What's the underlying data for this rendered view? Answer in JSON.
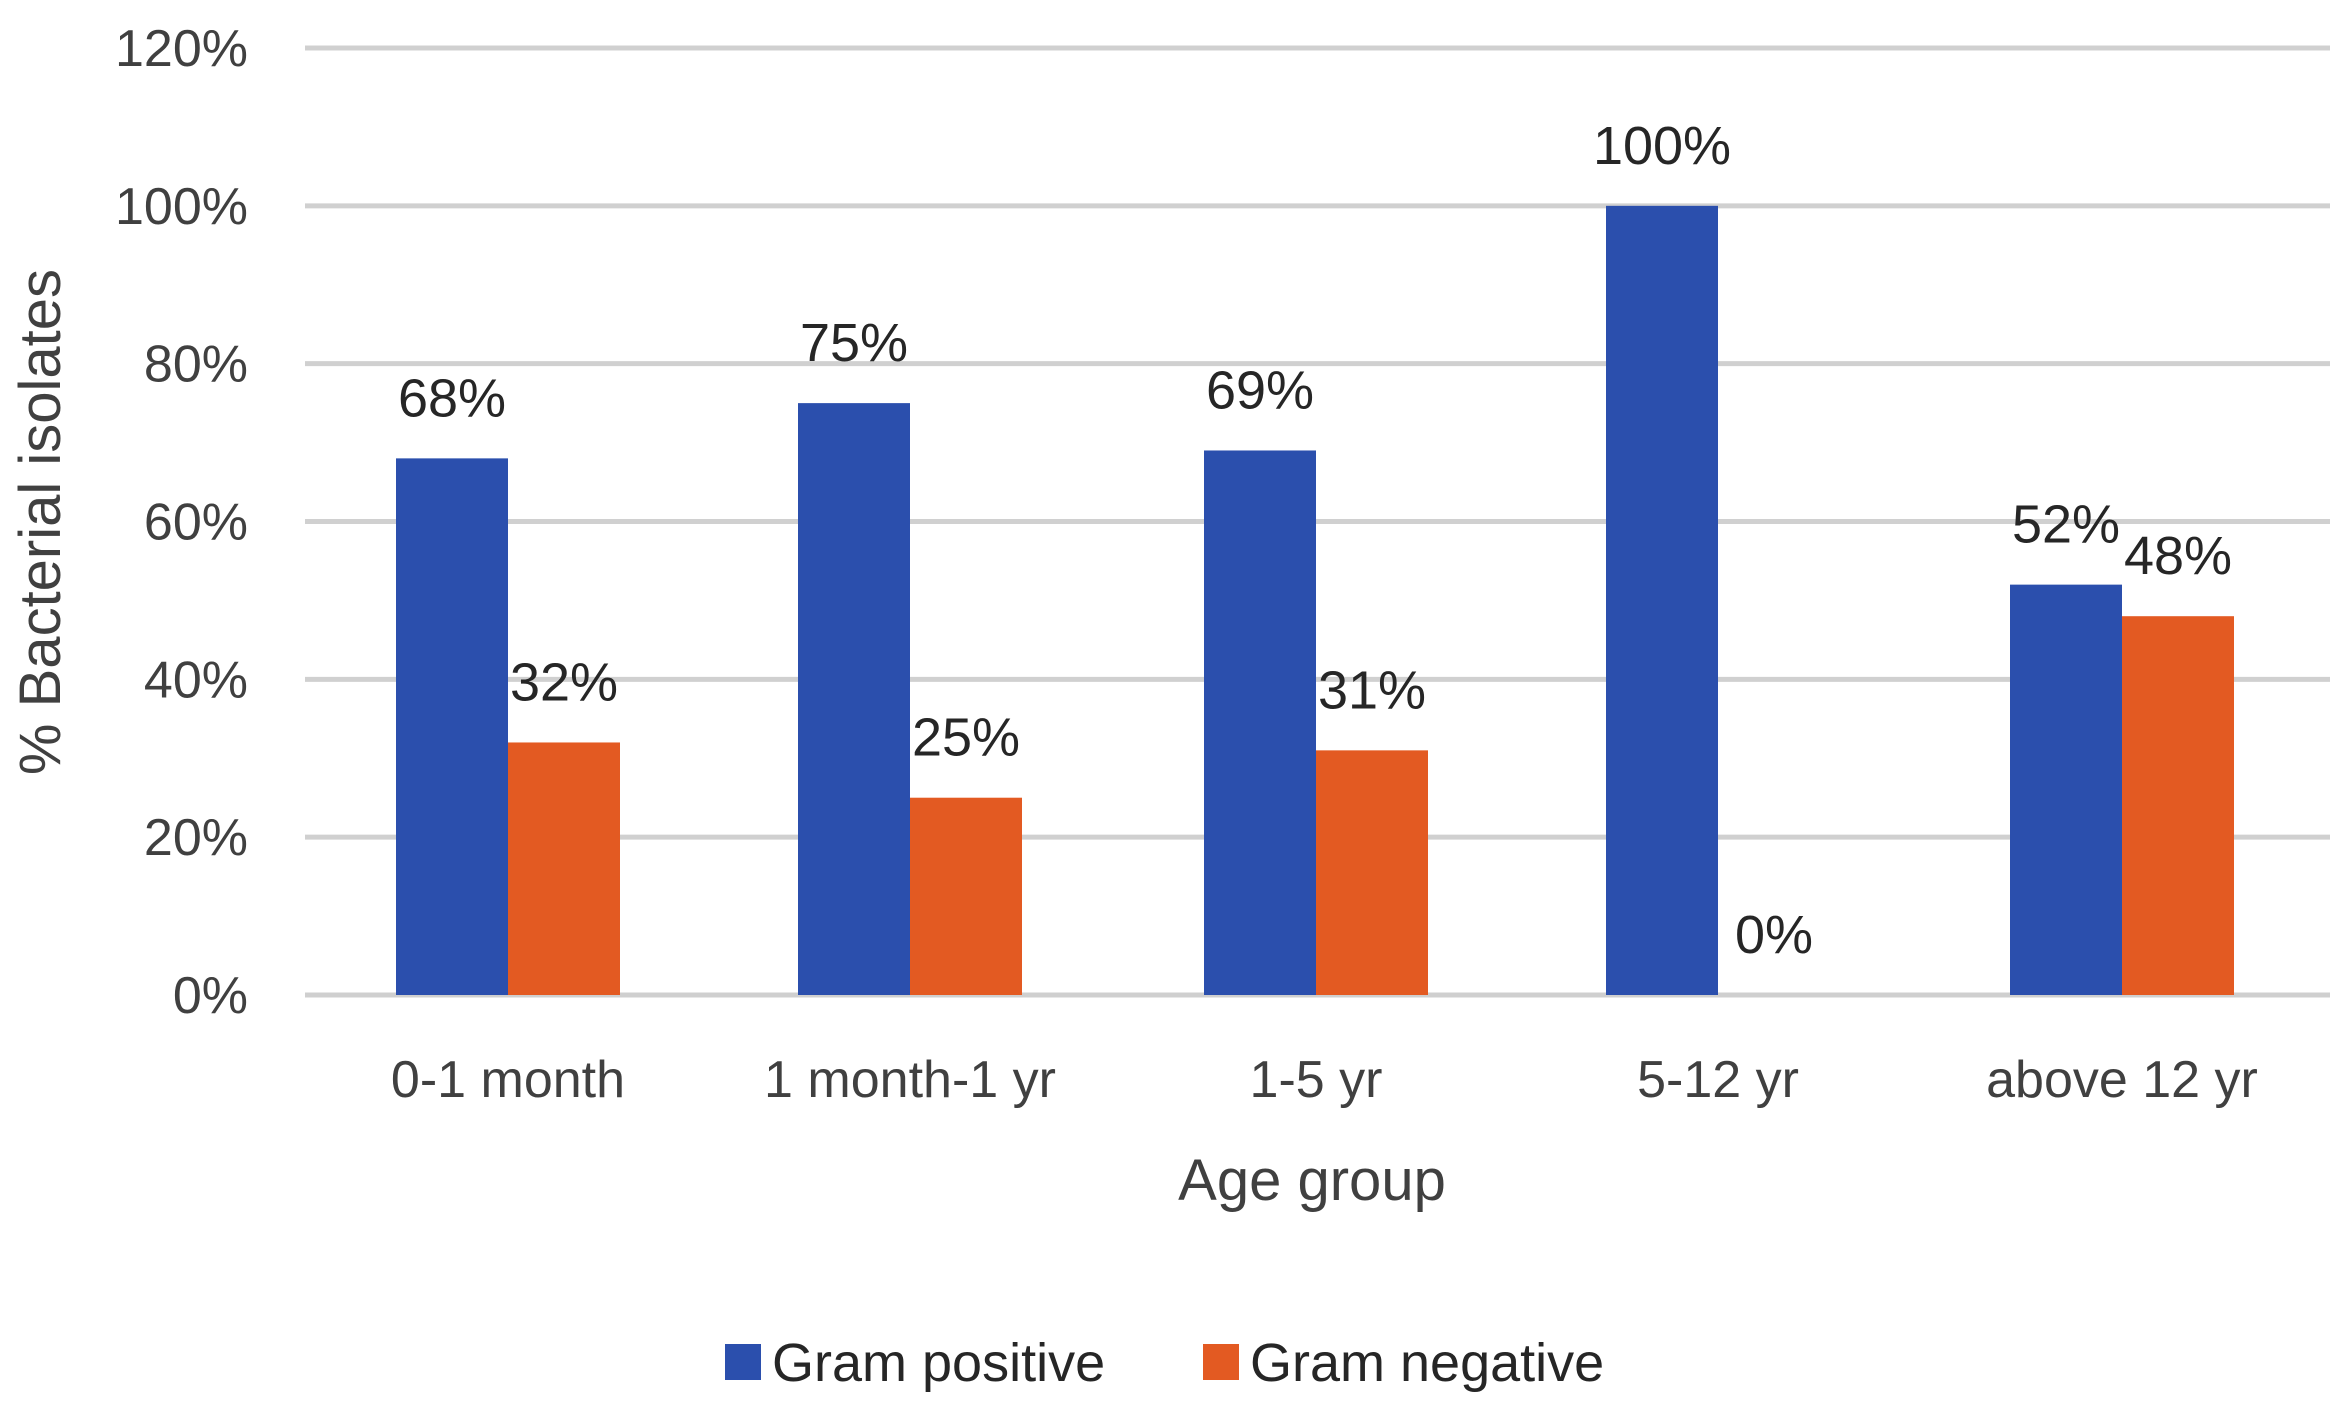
{
  "chart_data": {
    "type": "bar",
    "title": "",
    "xlabel": "Age group",
    "ylabel": "% Bacterial isolates",
    "categories": [
      "0-1 month",
      "1 month-1 yr",
      "1-5 yr",
      "5-12 yr",
      "above 12 yr"
    ],
    "series": [
      {
        "name": "Gram positive",
        "color": "#2b4fad",
        "values": [
          68,
          75,
          69,
          100,
          52
        ],
        "labels": [
          "68%",
          "75%",
          "69%",
          "100%",
          "52%"
        ]
      },
      {
        "name": "Gram negative",
        "color": "#e35a22",
        "values": [
          32,
          25,
          31,
          0,
          48
        ],
        "labels": [
          "32%",
          "25%",
          "31%",
          "0%",
          "48%"
        ]
      }
    ],
    "ylim": [
      0,
      120
    ],
    "yticks": [
      0,
      20,
      40,
      60,
      80,
      100,
      120
    ],
    "ytick_labels": [
      "0%",
      "20%",
      "40%",
      "60%",
      "80%",
      "100%",
      "120%"
    ],
    "grid": true,
    "legend_position": "bottom"
  }
}
